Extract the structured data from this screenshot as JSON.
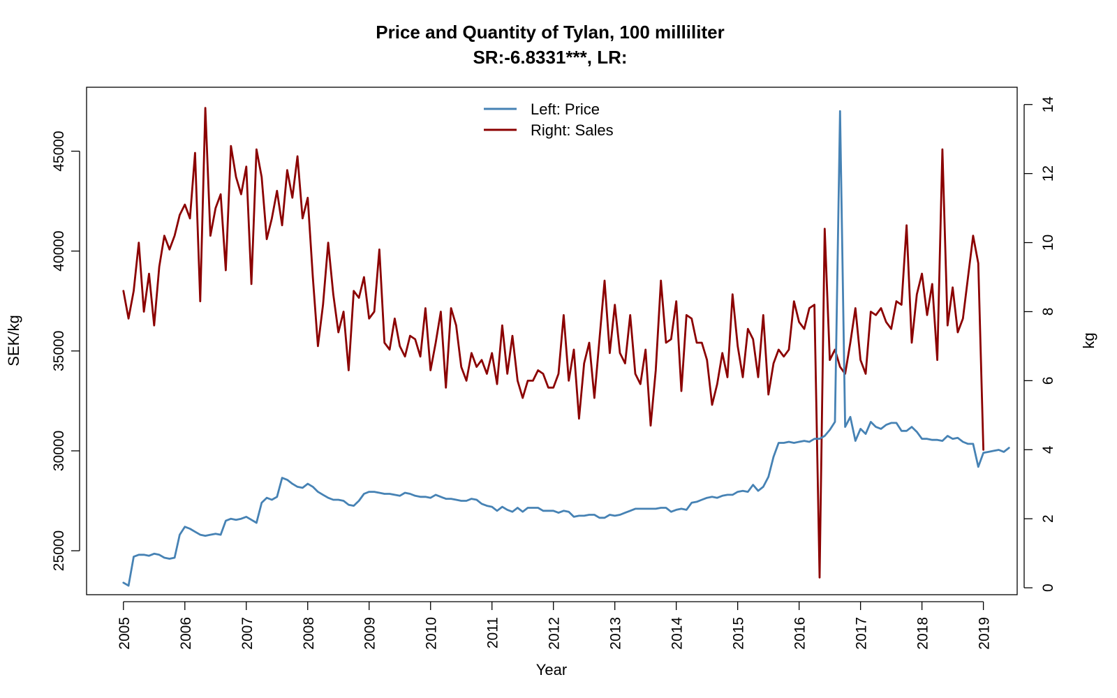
{
  "chart_data": {
    "type": "line",
    "title": "Price and Quantity of Tylan, 100 milliliter",
    "subtitle": "SR:-6.8331***, LR:",
    "xlabel": "Year",
    "ylabel_left": "SEK/kg",
    "ylabel_right": "kg",
    "xlim": [
      2004.4,
      2019.55
    ],
    "ylim_left": [
      22800,
      48200
    ],
    "ylim_right": [
      -0.2,
      14.5
    ],
    "x_ticks": [
      2005,
      2006,
      2007,
      2008,
      2009,
      2010,
      2011,
      2012,
      2013,
      2014,
      2015,
      2016,
      2017,
      2018,
      2019
    ],
    "x_tick_labels": [
      "2005",
      "2006",
      "2007",
      "2008",
      "2009",
      "2010",
      "2011",
      "2012",
      "2013",
      "2014",
      "2015",
      "2016",
      "2017",
      "2018",
      "2019"
    ],
    "y_left_ticks": [
      25000,
      30000,
      35000,
      40000,
      45000
    ],
    "y_left_tick_labels": [
      "25000",
      "30000",
      "35000",
      "40000",
      "45000"
    ],
    "y_right_ticks": [
      0,
      2,
      4,
      6,
      8,
      10,
      12,
      14
    ],
    "y_right_tick_labels": [
      "0",
      "2",
      "4",
      "6",
      "8",
      "10",
      "12",
      "14"
    ],
    "legend_placement": "top-center",
    "grid": false,
    "x_start_year": 2005,
    "series": [
      {
        "name": "Left: Price",
        "axis": "left",
        "color": "#4682b4",
        "values": [
          23400,
          23250,
          24700,
          24800,
          24800,
          24750,
          24850,
          24800,
          24650,
          24600,
          24650,
          25800,
          26200,
          26100,
          25950,
          25800,
          25750,
          25800,
          25850,
          25800,
          26500,
          26600,
          26550,
          26600,
          26700,
          26550,
          26400,
          27400,
          27650,
          27550,
          27700,
          28650,
          28550,
          28350,
          28200,
          28150,
          28350,
          28200,
          27950,
          27800,
          27650,
          27550,
          27550,
          27500,
          27300,
          27250,
          27500,
          27850,
          27950,
          27950,
          27900,
          27850,
          27850,
          27800,
          27750,
          27900,
          27850,
          27750,
          27700,
          27700,
          27650,
          27800,
          27700,
          27600,
          27600,
          27550,
          27500,
          27500,
          27600,
          27550,
          27350,
          27250,
          27200,
          27000,
          27200,
          27050,
          26950,
          27150,
          26950,
          27150,
          27150,
          27150,
          27000,
          27000,
          27000,
          26900,
          27000,
          26950,
          26700,
          26750,
          26750,
          26800,
          26800,
          26650,
          26650,
          26800,
          26750,
          26800,
          26900,
          27000,
          27100,
          27100,
          27100,
          27100,
          27100,
          27150,
          27150,
          26950,
          27050,
          27100,
          27050,
          27400,
          27450,
          27550,
          27650,
          27700,
          27650,
          27750,
          27800,
          27800,
          27950,
          28000,
          27950,
          28300,
          28000,
          28200,
          28700,
          29700,
          30400,
          30400,
          30450,
          30400,
          30450,
          30500,
          30450,
          30600,
          30600,
          30750,
          31050,
          31450,
          47000,
          31200,
          31700,
          30500,
          31100,
          30850,
          31450,
          31200,
          31100,
          31300,
          31400,
          31400,
          31000,
          31000,
          31200,
          30950,
          30600,
          30600,
          30550,
          30550,
          30500,
          30750,
          30600,
          30650,
          30450,
          30350,
          30350,
          29200,
          29900,
          29950,
          30000,
          30050,
          29950,
          30150
        ]
      },
      {
        "name": "Right: Sales",
        "axis": "right",
        "color": "#8b0000",
        "values": [
          8.6,
          7.8,
          8.6,
          10.0,
          8.0,
          9.1,
          7.6,
          9.3,
          10.2,
          9.8,
          10.2,
          10.8,
          11.1,
          10.7,
          12.6,
          8.3,
          13.9,
          10.2,
          11.0,
          11.4,
          9.2,
          12.8,
          11.9,
          11.4,
          12.2,
          8.8,
          12.7,
          11.9,
          10.1,
          10.7,
          11.5,
          10.5,
          12.1,
          11.3,
          12.5,
          10.7,
          11.3,
          9.0,
          7.0,
          8.2,
          10.0,
          8.5,
          7.4,
          8.0,
          6.3,
          8.6,
          8.4,
          9.0,
          7.8,
          8.0,
          9.8,
          7.1,
          6.9,
          7.8,
          7.0,
          6.7,
          7.3,
          7.2,
          6.7,
          8.1,
          6.3,
          7.1,
          8.0,
          5.8,
          8.1,
          7.6,
          6.4,
          6.0,
          6.8,
          6.4,
          6.6,
          6.2,
          6.8,
          5.9,
          7.6,
          6.2,
          7.3,
          6.0,
          5.5,
          6.0,
          6.0,
          6.3,
          6.2,
          5.8,
          5.8,
          6.2,
          7.9,
          6.0,
          6.9,
          4.9,
          6.5,
          7.1,
          5.5,
          7.2,
          8.9,
          6.8,
          8.2,
          6.8,
          6.5,
          7.9,
          6.2,
          5.9,
          6.9,
          4.7,
          6.3,
          8.9,
          7.1,
          7.2,
          8.3,
          5.7,
          7.9,
          7.8,
          7.1,
          7.1,
          6.6,
          5.3,
          5.9,
          6.8,
          6.1,
          8.5,
          7.0,
          6.1,
          7.5,
          7.2,
          6.1,
          7.9,
          5.6,
          6.5,
          6.9,
          6.7,
          6.9,
          8.3,
          7.7,
          7.5,
          8.1,
          8.2,
          0.3,
          10.4,
          6.6,
          6.9,
          6.4,
          6.2,
          7.1,
          8.1,
          6.6,
          6.2,
          8.0,
          7.9,
          8.1,
          7.7,
          7.5,
          8.3,
          8.2,
          10.5,
          7.1,
          8.5,
          9.1,
          7.9,
          8.8,
          6.6,
          12.7,
          7.6,
          8.7,
          7.4,
          7.8,
          9.0,
          10.2,
          9.4,
          4.0
        ]
      }
    ]
  }
}
